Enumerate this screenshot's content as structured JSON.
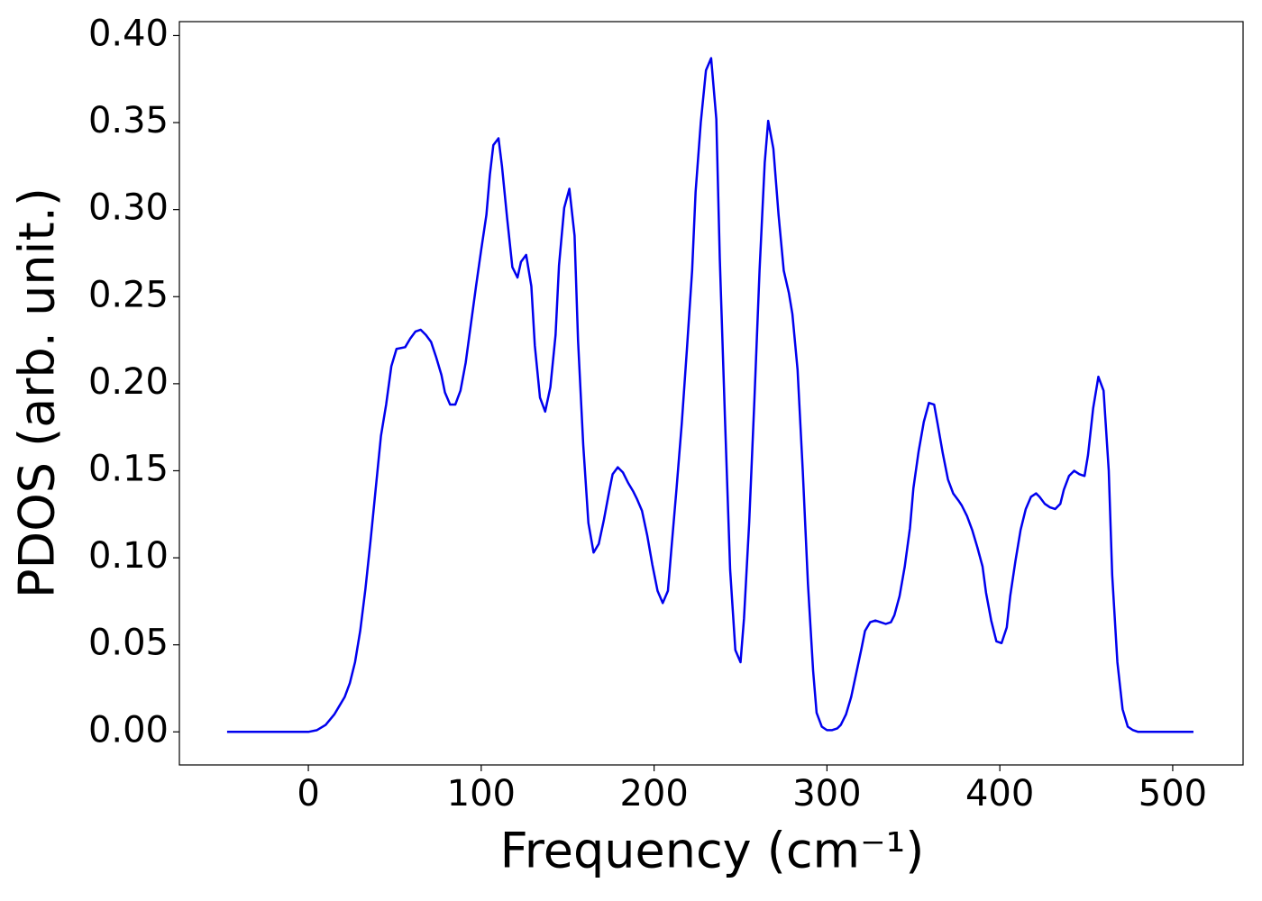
{
  "chart_data": {
    "type": "line",
    "xlabel": "Frequency (cm⁻¹)",
    "ylabel": "PDOS (arb. unit.)",
    "x": [
      -47,
      0,
      5,
      10,
      15,
      18,
      21,
      24,
      27,
      30,
      33,
      36,
      39,
      42,
      45,
      48,
      51,
      56,
      59,
      62,
      65,
      68,
      71,
      74,
      77,
      79,
      82,
      85,
      88,
      91,
      94,
      97,
      100,
      103,
      105,
      107,
      110,
      112,
      115,
      118,
      121,
      123,
      126,
      129,
      131,
      134,
      137,
      140,
      143,
      145,
      148,
      151,
      154,
      156,
      159,
      162,
      165,
      168,
      171,
      174,
      176,
      179,
      182,
      185,
      188,
      190,
      193,
      196,
      199,
      202,
      205,
      208,
      210,
      213,
      216,
      219,
      222,
      224,
      227,
      230,
      233,
      236,
      238,
      241,
      244,
      247,
      250,
      252,
      255,
      258,
      261,
      264,
      266,
      269,
      272,
      275,
      278,
      280,
      283,
      286,
      289,
      292,
      294,
      297,
      300,
      303,
      306,
      308,
      311,
      314,
      317,
      320,
      322,
      325,
      328,
      331,
      334,
      337,
      339,
      342,
      345,
      348,
      350,
      353,
      356,
      359,
      362,
      364,
      367,
      370,
      373,
      376,
      378,
      381,
      384,
      387,
      390,
      392,
      395,
      398,
      401,
      404,
      406,
      409,
      412,
      415,
      418,
      421,
      423,
      426,
      429,
      432,
      435,
      437,
      440,
      443,
      446,
      449,
      451,
      454,
      457,
      460,
      463,
      465,
      468,
      471,
      474,
      477,
      480,
      512
    ],
    "series": [
      {
        "name": "PDOS",
        "color": "#0000ee",
        "values": [
          0,
          0,
          0.001,
          0.004,
          0.01,
          0.015,
          0.02,
          0.028,
          0.04,
          0.058,
          0.082,
          0.11,
          0.14,
          0.17,
          0.188,
          0.21,
          0.22,
          0.221,
          0.226,
          0.23,
          0.231,
          0.228,
          0.224,
          0.215,
          0.205,
          0.195,
          0.188,
          0.188,
          0.196,
          0.212,
          0.234,
          0.256,
          0.277,
          0.297,
          0.32,
          0.337,
          0.341,
          0.325,
          0.295,
          0.267,
          0.261,
          0.27,
          0.274,
          0.256,
          0.222,
          0.192,
          0.184,
          0.198,
          0.228,
          0.268,
          0.301,
          0.312,
          0.285,
          0.225,
          0.165,
          0.12,
          0.103,
          0.108,
          0.122,
          0.138,
          0.148,
          0.152,
          0.149,
          0.143,
          0.138,
          0.134,
          0.127,
          0.113,
          0.096,
          0.081,
          0.074,
          0.081,
          0.105,
          0.14,
          0.177,
          0.22,
          0.265,
          0.31,
          0.35,
          0.38,
          0.387,
          0.352,
          0.272,
          0.18,
          0.093,
          0.047,
          0.04,
          0.065,
          0.12,
          0.19,
          0.265,
          0.327,
          0.351,
          0.335,
          0.297,
          0.265,
          0.252,
          0.24,
          0.208,
          0.15,
          0.085,
          0.035,
          0.011,
          0.003,
          0.001,
          0.001,
          0.002,
          0.004,
          0.01,
          0.02,
          0.034,
          0.048,
          0.058,
          0.063,
          0.064,
          0.063,
          0.062,
          0.063,
          0.067,
          0.078,
          0.095,
          0.117,
          0.14,
          0.161,
          0.178,
          0.189,
          0.188,
          0.177,
          0.16,
          0.145,
          0.137,
          0.133,
          0.13,
          0.124,
          0.116,
          0.106,
          0.095,
          0.08,
          0.064,
          0.052,
          0.051,
          0.06,
          0.078,
          0.098,
          0.116,
          0.128,
          0.135,
          0.137,
          0.135,
          0.131,
          0.129,
          0.128,
          0.131,
          0.139,
          0.147,
          0.15,
          0.148,
          0.147,
          0.159,
          0.186,
          0.204,
          0.196,
          0.15,
          0.09,
          0.04,
          0.013,
          0.003,
          0.001,
          0,
          0
        ]
      }
    ],
    "xlim": [
      -74.6,
      540.7
    ],
    "xticks": [
      0,
      100,
      200,
      300,
      400,
      500
    ],
    "ylim": [
      -0.019,
      0.408
    ],
    "yticks": [
      {
        "value": 0,
        "label": "0.00"
      },
      {
        "value": 0.05,
        "label": "0.05"
      },
      {
        "value": 0.1,
        "label": "0.10"
      },
      {
        "value": 0.15,
        "label": "0.15"
      },
      {
        "value": 0.2,
        "label": "0.20"
      },
      {
        "value": 0.25,
        "label": "0.25"
      },
      {
        "value": 0.3,
        "label": "0.30"
      },
      {
        "value": 0.35,
        "label": "0.35"
      },
      {
        "value": 0.4,
        "label": "0.40"
      }
    ],
    "grid": false
  }
}
